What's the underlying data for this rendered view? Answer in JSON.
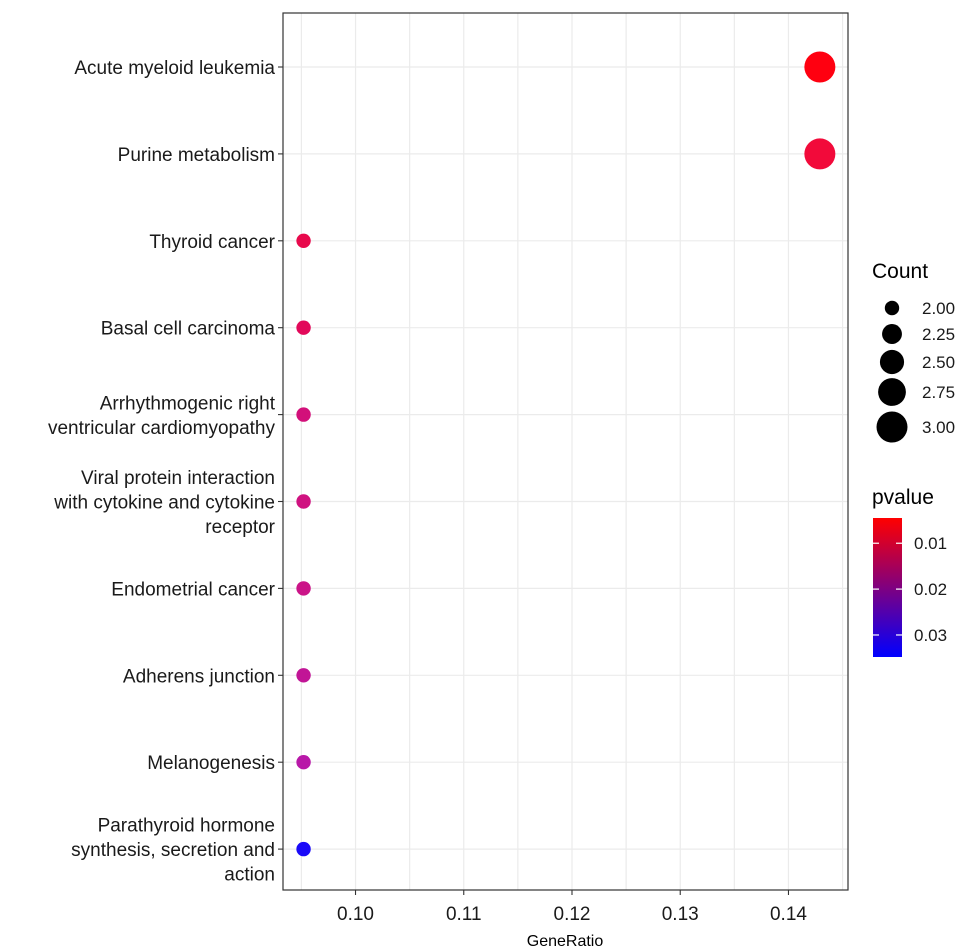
{
  "chart_data": {
    "type": "scatter",
    "subtype": "dot-plot",
    "xlabel": "GeneRatio",
    "xlim": [
      0.0933,
      0.1455
    ],
    "xticks": [
      0.1,
      0.11,
      0.12,
      0.13,
      0.14
    ],
    "xtick_labels": [
      "0.10",
      "0.11",
      "0.12",
      "0.13",
      "0.14"
    ],
    "grid": true,
    "categories": [
      "Acute myeloid leukemia",
      "Purine metabolism",
      "Thyroid cancer",
      "Basal cell carcinoma",
      "Arrhythmogenic right ventricular cardiomyopathy",
      "Viral protein interaction with cytokine and cytokine receptor",
      "Endometrial cancer",
      "Adherens junction",
      "Melanogenesis",
      "Parathyroid hormone synthesis, secretion and action"
    ],
    "category_lines": [
      [
        "Acute myeloid leukemia"
      ],
      [
        "Purine metabolism"
      ],
      [
        "Thyroid cancer"
      ],
      [
        "Basal cell carcinoma"
      ],
      [
        "Arrhythmogenic right",
        "ventricular cardiomyopathy"
      ],
      [
        "Viral protein interaction",
        "with cytokine and cytokine",
        "receptor"
      ],
      [
        "Endometrial cancer"
      ],
      [
        "Adherens junction"
      ],
      [
        "Melanogenesis"
      ],
      [
        "Parathyroid hormone",
        "synthesis, secretion and",
        "action"
      ]
    ],
    "points": [
      {
        "category": "Acute myeloid leukemia",
        "gene_ratio": 0.1429,
        "count": 3,
        "pvalue": 0.0045,
        "color": "#FF0010"
      },
      {
        "category": "Purine metabolism",
        "gene_ratio": 0.1429,
        "count": 3,
        "pvalue": 0.0062,
        "color": "#F20A3A"
      },
      {
        "category": "Thyroid cancer",
        "gene_ratio": 0.0952,
        "count": 2,
        "pvalue": 0.0105,
        "color": "#E8094C"
      },
      {
        "category": "Basal cell carcinoma",
        "gene_ratio": 0.0952,
        "count": 2,
        "pvalue": 0.012,
        "color": "#E2095A"
      },
      {
        "category": "Arrhythmogenic right ventricular cardiomyopathy",
        "gene_ratio": 0.0952,
        "count": 2,
        "pvalue": 0.0165,
        "color": "#D2107A"
      },
      {
        "category": "Viral protein interaction with cytokine and cytokine receptor",
        "gene_ratio": 0.0952,
        "count": 2,
        "pvalue": 0.0175,
        "color": "#CF1280"
      },
      {
        "category": "Endometrial cancer",
        "gene_ratio": 0.0952,
        "count": 2,
        "pvalue": 0.0185,
        "color": "#CB1488"
      },
      {
        "category": "Adherens junction",
        "gene_ratio": 0.0952,
        "count": 2,
        "pvalue": 0.0205,
        "color": "#C11596"
      },
      {
        "category": "Melanogenesis",
        "gene_ratio": 0.0952,
        "count": 2,
        "pvalue": 0.0225,
        "color": "#B818A8"
      },
      {
        "category": "Parathyroid hormone synthesis, secretion and action",
        "gene_ratio": 0.0952,
        "count": 2,
        "pvalue": 0.0345,
        "color": "#1A0AF8"
      }
    ],
    "size_legend": {
      "title": "Count",
      "values": [
        2.0,
        2.25,
        2.5,
        2.75,
        3.0
      ],
      "labels": [
        "2.00",
        "2.25",
        "2.50",
        "2.75",
        "3.00"
      ]
    },
    "color_legend": {
      "title": "pvalue",
      "range": [
        0.0045,
        0.0348
      ],
      "low_color": "#FF0000",
      "high_color": "#0000FF",
      "ticks": [
        0.01,
        0.02,
        0.03
      ],
      "tick_labels": [
        "0.01",
        "0.02",
        "0.03"
      ]
    }
  }
}
